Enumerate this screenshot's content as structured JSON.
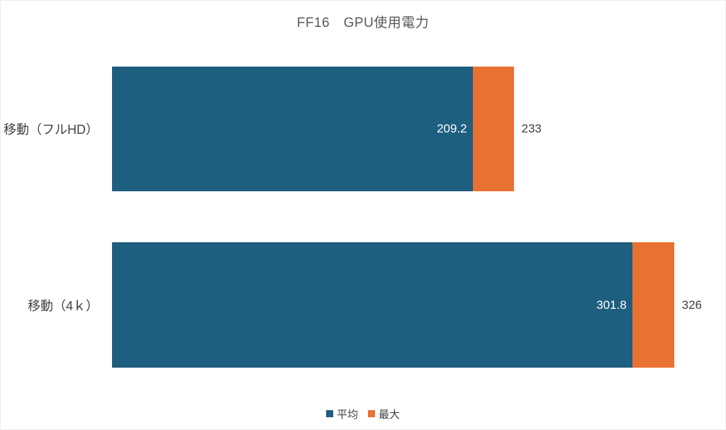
{
  "chart_data": {
    "type": "bar",
    "orientation": "horizontal",
    "stacked": true,
    "title": "FF16　GPU使用電力",
    "categories": [
      "移動（フルHD）",
      "移動（4ｋ）"
    ],
    "series": [
      {
        "name": "平均",
        "values": [
          209.2,
          301.8
        ],
        "color": "#1E5E7E"
      },
      {
        "name": "最大",
        "values": [
          233,
          326
        ],
        "color": "#E97132"
      }
    ],
    "segment_note": "最大 segment is drawn from the 平均 value to the 最大 value (stacked remainder)",
    "labels": {
      "avg": [
        "209.2",
        "301.8"
      ],
      "max": [
        "233",
        "326"
      ]
    },
    "xlim": [
      0,
      350
    ],
    "axis_visible": false,
    "gridlines": false,
    "legend_position": "bottom",
    "colors": {
      "title_text": "#595959",
      "label_text": "#404040",
      "inner_label_text": "#ffffff",
      "background": "#ffffff"
    }
  }
}
